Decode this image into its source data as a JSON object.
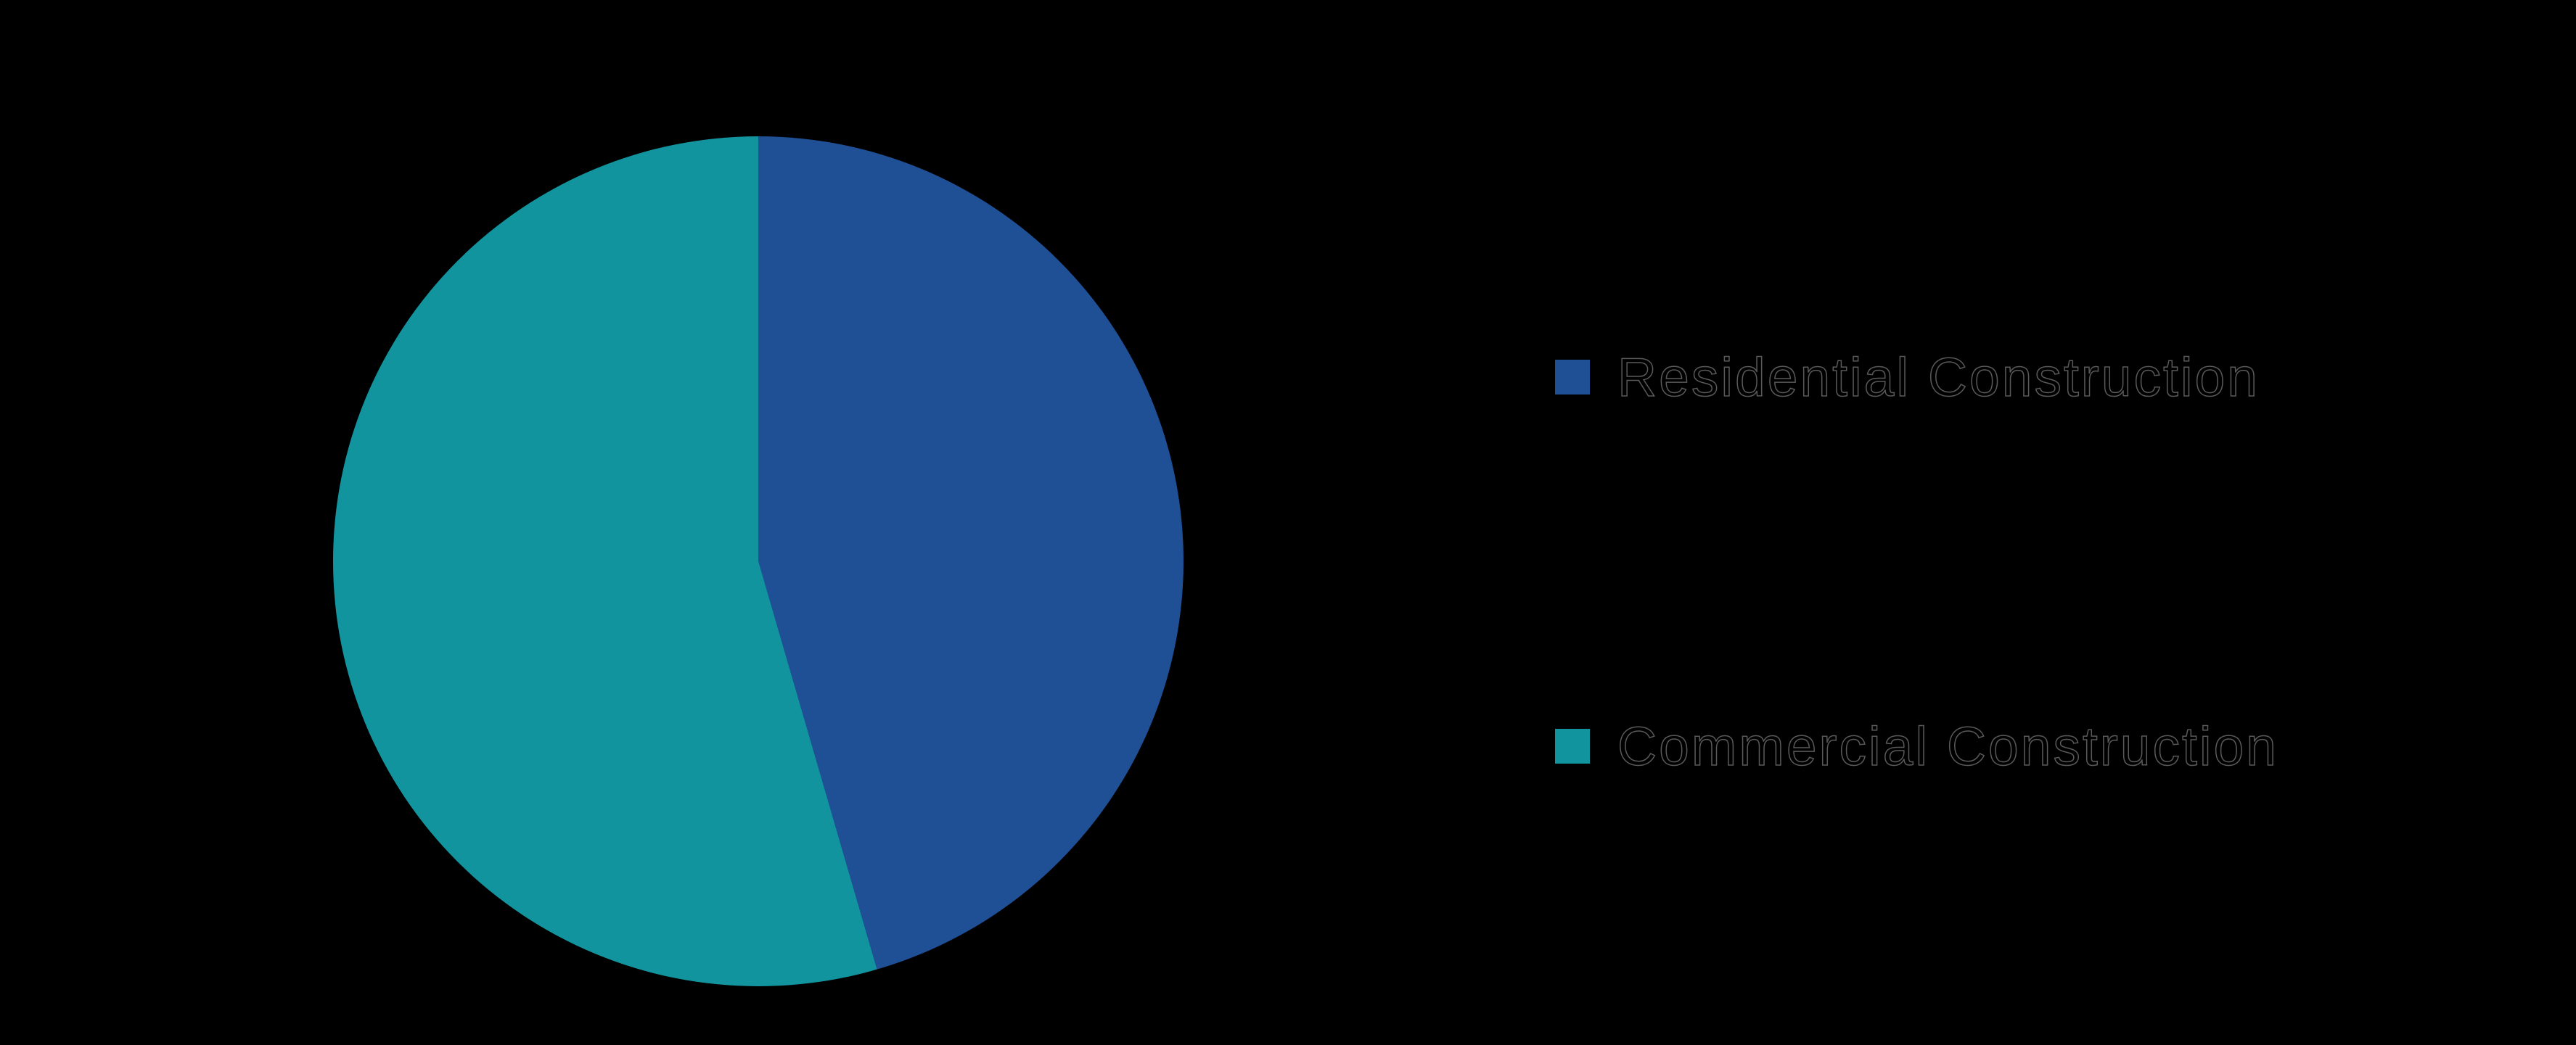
{
  "background_color": "#000000",
  "chart_data": {
    "type": "pie",
    "title": "",
    "labels": [
      "Residential Construction",
      "Commercial Construction"
    ],
    "values": [
      45.5,
      54.5
    ],
    "unit": "percent",
    "colors": [
      "#1F5095",
      "#12949E"
    ],
    "start_angle_deg": 0,
    "direction": "clockwise",
    "legend_position": "right",
    "data_labels_visible": false
  },
  "legend": {
    "items": [
      {
        "label": "Residential Construction",
        "color": "#1F5095"
      },
      {
        "label": "Commercial Construction",
        "color": "#12949E"
      }
    ]
  }
}
